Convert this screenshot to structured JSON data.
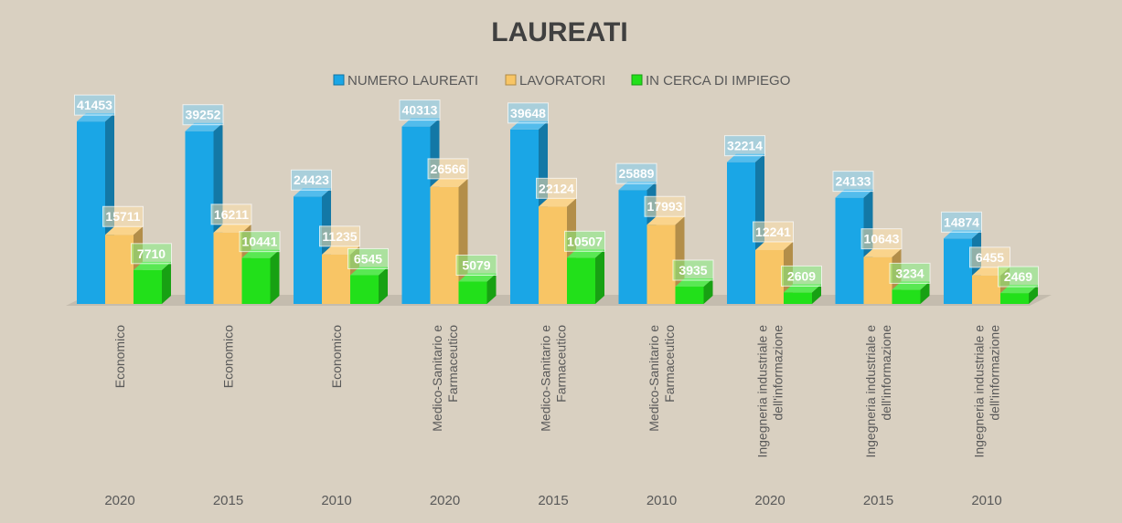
{
  "chart_data": {
    "type": "bar",
    "title": "LAUREATI",
    "legend_position": "top",
    "colors": {
      "NUMERO LAUREATI": "#1aa6e6",
      "LAVORATORI": "#f8c565",
      "IN CERCA DI IMPIEGO": "#22e01a"
    },
    "categories": [
      {
        "area": [
          "Economico"
        ],
        "year": "2020"
      },
      {
        "area": [
          "Economico"
        ],
        "year": "2015"
      },
      {
        "area": [
          "Economico"
        ],
        "year": "2010"
      },
      {
        "area": [
          "Medico-Sanitario e",
          "Farmaceutico"
        ],
        "year": "2020"
      },
      {
        "area": [
          "Medico-Sanitario e",
          "Farmaceutico"
        ],
        "year": "2015"
      },
      {
        "area": [
          "Medico-Sanitario e",
          "Farmaceutico"
        ],
        "year": "2010"
      },
      {
        "area": [
          "Ingegneria industriale e",
          "dell'informazione"
        ],
        "year": "2020"
      },
      {
        "area": [
          "Ingegneria industriale e",
          "dell'informazione"
        ],
        "year": "2015"
      },
      {
        "area": [
          "Ingegneria industriale e",
          "dell'informazione"
        ],
        "year": "2010"
      }
    ],
    "series": [
      {
        "name": "NUMERO LAUREATI",
        "values": [
          41453,
          39252,
          24423,
          40313,
          39648,
          25889,
          32214,
          24133,
          14874
        ]
      },
      {
        "name": "LAVORATORI",
        "values": [
          15711,
          16211,
          11235,
          26566,
          22124,
          17993,
          12241,
          10643,
          6455
        ]
      },
      {
        "name": "IN CERCA DI IMPIEGO",
        "values": [
          7710,
          10441,
          6545,
          5079,
          10507,
          3935,
          2609,
          3234,
          2469
        ]
      }
    ],
    "ylim": [
      0,
      45000
    ]
  }
}
